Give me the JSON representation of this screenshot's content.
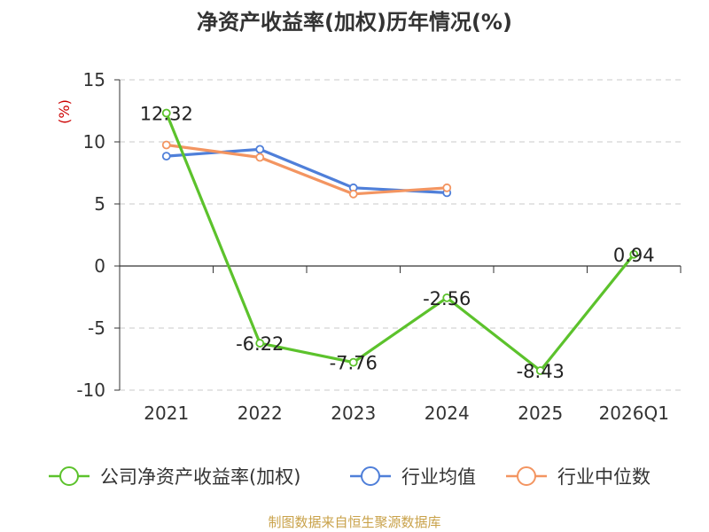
{
  "chart_data": {
    "type": "line",
    "title": "净资产收益率(加权)历年情况(%)",
    "ylabel": "(%)",
    "categories": [
      "2021",
      "2022",
      "2023",
      "2024",
      "2025",
      "2026Q1"
    ],
    "y_ticks": [
      "15",
      "10",
      "5",
      "0",
      "-5",
      "-10"
    ],
    "ylim": [
      -10,
      15
    ],
    "grid": true,
    "legend_position": "bottom",
    "series": [
      {
        "name": "公司净资产收益率(加权)",
        "color": "#5cc22c",
        "values": [
          12.32,
          -6.22,
          -7.76,
          -2.56,
          -8.43,
          0.94
        ],
        "labels": [
          "12.32",
          "-6.22",
          "-7.76",
          "-2.56",
          "-8.43",
          "0.94"
        ]
      },
      {
        "name": "行业均值",
        "color": "#4f7fd9",
        "values": [
          8.85,
          9.4,
          6.3,
          5.9,
          null,
          null
        ]
      },
      {
        "name": "行业中位数",
        "color": "#f39561",
        "values": [
          9.75,
          8.75,
          5.8,
          6.3,
          null,
          null
        ]
      }
    ],
    "source": "制图数据来自恒生聚源数据库"
  }
}
